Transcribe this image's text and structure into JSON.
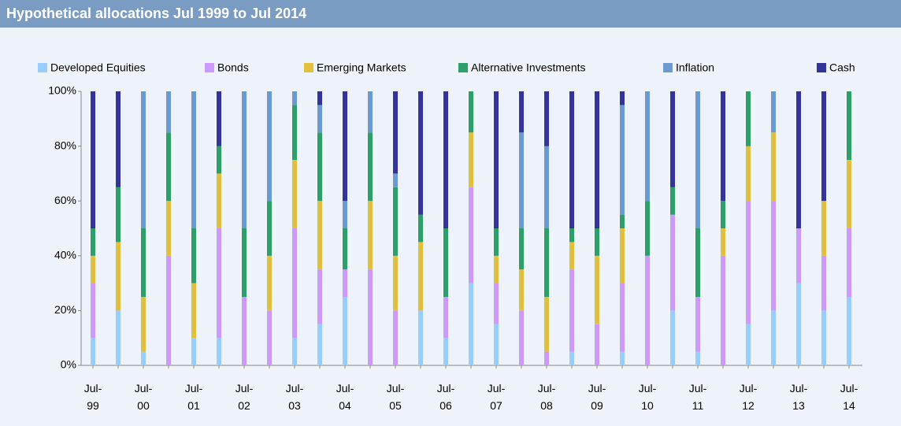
{
  "chart_data": {
    "type": "bar",
    "stacked": true,
    "title": "Hypothetical allocations Jul 1999 to Jul 2014",
    "categories": [
      "Jul-99",
      null,
      "Jul-00",
      null,
      "Jul-01",
      null,
      "Jul-02",
      null,
      "Jul-03",
      null,
      "Jul-04",
      null,
      "Jul-05",
      null,
      "Jul-06",
      null,
      "Jul-07",
      null,
      "Jul-08",
      null,
      "Jul-09",
      null,
      "Jul-10",
      null,
      "Jul-11",
      null,
      "Jul-12",
      null,
      "Jul-13",
      null,
      "Jul-14"
    ],
    "series": [
      {
        "name": "Developed Equities",
        "color": "#99ccff",
        "values": [
          10,
          20,
          5,
          0,
          10,
          10,
          0,
          0,
          10,
          15,
          25,
          0,
          0,
          20,
          10,
          30,
          15,
          0,
          0,
          5,
          0,
          5,
          0,
          20,
          5,
          0,
          15,
          20,
          30,
          20,
          25
        ]
      },
      {
        "name": "Bonds",
        "color": "#cc99ff",
        "values": [
          20,
          0,
          0,
          40,
          0,
          40,
          25,
          20,
          40,
          20,
          10,
          35,
          20,
          0,
          15,
          35,
          15,
          20,
          5,
          30,
          15,
          25,
          40,
          35,
          20,
          40,
          45,
          40,
          20,
          20,
          25
        ]
      },
      {
        "name": "Emerging Markets",
        "color": "#e0c03c",
        "values": [
          10,
          25,
          20,
          20,
          20,
          20,
          0,
          20,
          25,
          25,
          0,
          25,
          20,
          25,
          0,
          20,
          10,
          15,
          20,
          10,
          25,
          20,
          0,
          0,
          0,
          10,
          20,
          25,
          0,
          20,
          25
        ]
      },
      {
        "name": "Alternative Investments",
        "color": "#2e9e6a",
        "values": [
          10,
          20,
          25,
          25,
          20,
          10,
          25,
          20,
          20,
          25,
          15,
          25,
          25,
          10,
          25,
          15,
          10,
          15,
          25,
          5,
          10,
          5,
          20,
          10,
          25,
          10,
          20,
          0,
          0,
          0,
          25
        ]
      },
      {
        "name": "Inflation",
        "color": "#6b9ad0",
        "values": [
          0,
          0,
          50,
          15,
          50,
          0,
          50,
          40,
          5,
          10,
          10,
          15,
          5,
          0,
          0,
          0,
          0,
          35,
          30,
          0,
          0,
          40,
          40,
          0,
          50,
          0,
          0,
          15,
          0,
          0,
          0
        ]
      },
      {
        "name": "Cash",
        "color": "#333399",
        "values": [
          50,
          35,
          0,
          0,
          0,
          20,
          0,
          0,
          0,
          5,
          40,
          0,
          30,
          45,
          50,
          0,
          50,
          15,
          20,
          50,
          50,
          5,
          0,
          35,
          0,
          40,
          0,
          0,
          50,
          40,
          0
        ]
      }
    ],
    "ylim": [
      0,
      100
    ],
    "yticks": [
      {
        "value": 0,
        "label": "0%"
      },
      {
        "value": 20,
        "label": "20%"
      },
      {
        "value": 40,
        "label": "40%"
      },
      {
        "value": 60,
        "label": "60%"
      },
      {
        "value": 80,
        "label": "80%"
      },
      {
        "value": 100,
        "label": "100%"
      }
    ],
    "legend": "top"
  }
}
